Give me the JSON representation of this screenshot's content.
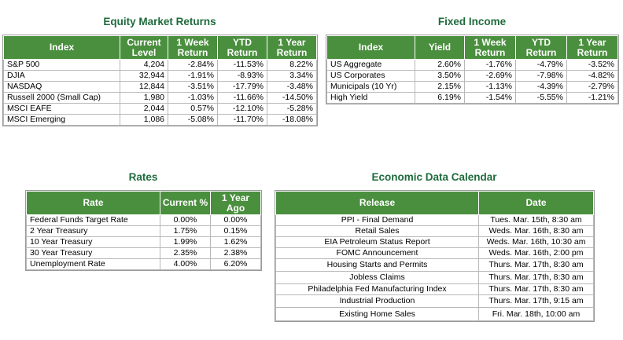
{
  "equity": {
    "title": "Equity Market Returns",
    "headers": [
      "Index",
      "Current Level",
      "1 Week Return",
      "YTD Return",
      "1 Year Return"
    ],
    "rows": [
      [
        "S&P 500",
        "4,204",
        "-2.84%",
        "-11.53%",
        "8.22%"
      ],
      [
        "DJIA",
        "32,944",
        "-1.91%",
        "-8.93%",
        "3.34%"
      ],
      [
        "NASDAQ",
        "12,844",
        "-3.51%",
        "-17.79%",
        "-3.48%"
      ],
      [
        "Russell 2000 (Small Cap)",
        "1,980",
        "-1.03%",
        "-11.66%",
        "-14.50%"
      ],
      [
        "MSCI EAFE",
        "2,044",
        "0.57%",
        "-12.10%",
        "-5.28%"
      ],
      [
        "MSCI Emerging",
        "1,086",
        "-5.08%",
        "-11.70%",
        "-18.08%"
      ]
    ]
  },
  "fixed_income": {
    "title": "Fixed Income",
    "headers": [
      "Index",
      "Yield",
      "1 Week Return",
      "YTD Return",
      "1 Year Return"
    ],
    "rows": [
      [
        "US Aggregate",
        "2.60%",
        "-1.76%",
        "-4.79%",
        "-3.52%"
      ],
      [
        "US Corporates",
        "3.50%",
        "-2.69%",
        "-7.98%",
        "-4.82%"
      ],
      [
        "Municipals (10 Yr)",
        "2.15%",
        "-1.13%",
        "-4.39%",
        "-2.79%"
      ],
      [
        "High Yield",
        "6.19%",
        "-1.54%",
        "-5.55%",
        "-1.21%"
      ]
    ]
  },
  "rates": {
    "title": "Rates",
    "headers": [
      "Rate",
      "Current %",
      "1 Year Ago"
    ],
    "rows": [
      [
        "Federal Funds Target Rate",
        "0.00%",
        "0.00%"
      ],
      [
        "2 Year Treasury",
        "1.75%",
        "0.15%"
      ],
      [
        "10 Year Treasury",
        "1.99%",
        "1.62%"
      ],
      [
        "30 Year Treasury",
        "2.35%",
        "2.38%"
      ],
      [
        "Unemployment Rate",
        "4.00%",
        "6.20%"
      ]
    ]
  },
  "calendar": {
    "title": "Economic Data Calendar",
    "headers": [
      "Release",
      "Date"
    ],
    "rows": [
      [
        "PPI - Final Demand",
        "Tues. Mar. 15th, 8:30 am"
      ],
      [
        "Retail Sales",
        "Weds. Mar. 16th, 8:30 am"
      ],
      [
        "EIA Petroleum Status Report",
        "Weds. Mar. 16th, 10:30 am"
      ],
      [
        "FOMC Announcement",
        "Weds. Mar. 16th, 2:00 pm"
      ],
      [
        "Housing Starts and Permits",
        "Thurs. Mar. 17th, 8:30 am"
      ],
      [
        "Jobless Claims",
        "Thurs. Mar. 17th, 8:30 am"
      ],
      [
        "Philadelphia Fed Manufacturing Index",
        "Thurs. Mar. 17th, 8:30 am"
      ],
      [
        "Industrial Production",
        "Thurs. Mar. 17th, 9:15 am"
      ],
      [
        "Existing Home Sales",
        "Fri. Mar. 18th, 10:00 am"
      ]
    ]
  }
}
